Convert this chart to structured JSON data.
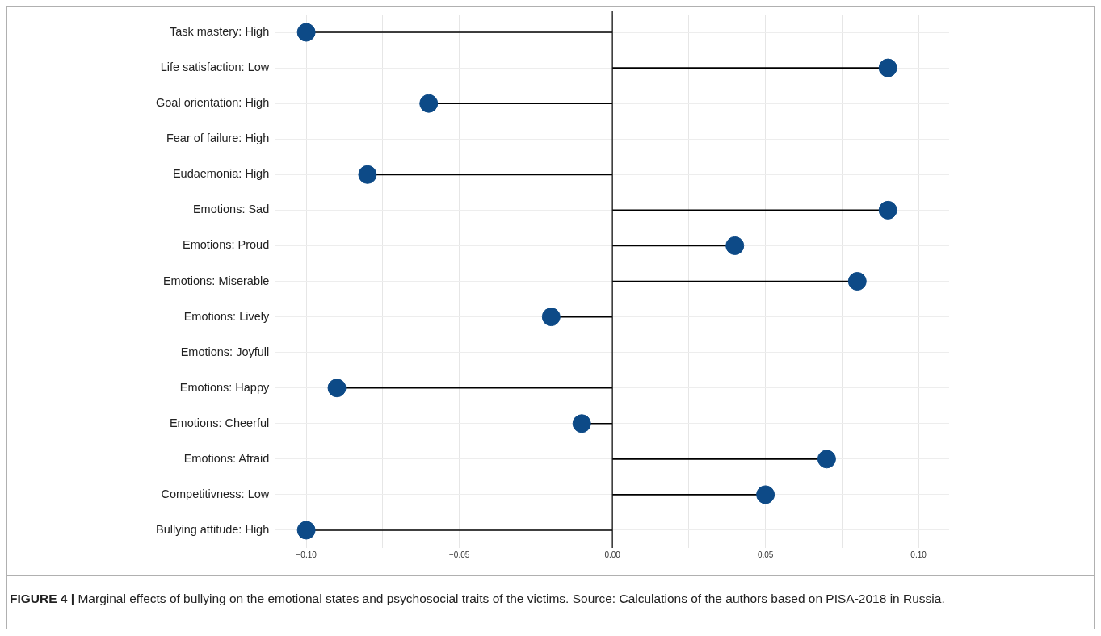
{
  "chart_data": {
    "type": "lollipop",
    "orientation": "horizontal",
    "categories": [
      "Task mastery: High",
      "Life satisfaction: Low",
      "Goal orientation: High",
      "Fear of failure: High",
      "Eudaemonia: High",
      "Emotions: Sad",
      "Emotions: Proud",
      "Emotions: Miserable",
      "Emotions: Lively",
      "Emotions: Joyfull",
      "Emotions: Happy",
      "Emotions: Cheerful",
      "Emotions: Afraid",
      "Competitivness: Low",
      "Bullying attitude: High"
    ],
    "values": [
      -0.1,
      0.09,
      -0.06,
      null,
      -0.08,
      0.09,
      0.04,
      0.08,
      -0.02,
      null,
      -0.09,
      -0.01,
      0.07,
      0.05,
      -0.1
    ],
    "color": "#0d4a87",
    "marker": "circle",
    "grid": true,
    "xlim": [
      -0.11,
      0.11
    ],
    "xticks": [
      {
        "value": -0.1,
        "label": "−0.10"
      },
      {
        "value": -0.075,
        "label": null
      },
      {
        "value": -0.05,
        "label": "−0.05"
      },
      {
        "value": -0.025,
        "label": null
      },
      {
        "value": 0,
        "label": "0.00"
      },
      {
        "value": 0.025,
        "label": null
      },
      {
        "value": 0.05,
        "label": "0.05"
      },
      {
        "value": 0.075,
        "label": null
      },
      {
        "value": 0.1,
        "label": "0.10"
      }
    ],
    "ref_lines": [
      {
        "axis": "x",
        "value": 0,
        "color": "#000000"
      }
    ],
    "annotations": [
      "FIGURE 4 | Marginal effects of bullying on the emotional states and psychosocial traits of the victims. Source: Calculations of the authors based on PISA-2018 in Russia."
    ]
  }
}
